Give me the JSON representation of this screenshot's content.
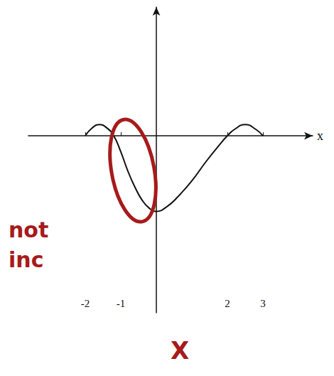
{
  "chart_data": {
    "type": "line",
    "xlabel": "x",
    "x": [
      -2,
      -1.8,
      -1.6,
      -1.4,
      -1.2,
      -1,
      -0.8,
      -0.6,
      -0.4,
      -0.2,
      0,
      0.3,
      0.6,
      1,
      1.4,
      1.8,
      2,
      2.2,
      2.5,
      2.8,
      3
    ],
    "values": [
      0,
      0.25,
      0.35,
      0.25,
      0,
      -0.5,
      -1.1,
      -1.6,
      -2,
      -2.25,
      -2.35,
      -2.2,
      -1.9,
      -1.4,
      -0.8,
      -0.25,
      0,
      0.2,
      0.35,
      0.2,
      0
    ],
    "color": "#111111",
    "xlim": [
      -3.6,
      4.4
    ],
    "xticks": [
      -2,
      -1,
      2,
      3
    ],
    "ylim": [
      -5.5,
      4
    ],
    "grid": false,
    "tick_labels": "x",
    "annotations": [
      {
        "text": "not inc",
        "color": "#a61b1b"
      },
      {
        "text": "X",
        "color": "#a61b1b"
      }
    ]
  }
}
